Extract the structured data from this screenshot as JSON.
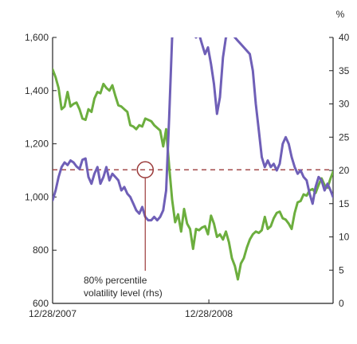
{
  "chart_data": {
    "type": "line",
    "title": "",
    "xlabel": "",
    "ylabel": "",
    "y2_unit_label": "%",
    "x_range": [
      "12/28/2007",
      "10/15/2009"
    ],
    "x_ticks": [
      "12/28/2007",
      "12/28/2008"
    ],
    "y_left": {
      "range": [
        600,
        1600
      ],
      "ticks": [
        "600",
        "800",
        "1,000",
        "1,200",
        "1,400",
        "1,600"
      ]
    },
    "y_right": {
      "range": [
        0,
        40
      ],
      "ticks": [
        "0",
        "5",
        "10",
        "15",
        "20",
        "25",
        "30",
        "35",
        "40"
      ]
    },
    "grid": false,
    "colors": {
      "left_series": "#6cae3e",
      "right_series": "#6f5fb7",
      "reference": "#9b3b3b",
      "axis": "#222222"
    },
    "annotation": {
      "text_lines": [
        "80% percentile",
        "volatility level (rhs)"
      ],
      "value": 20.1,
      "axis": "right",
      "marker_date": "2008-08-01"
    },
    "series": [
      {
        "axis": "left",
        "color": "green",
        "points": [
          [
            "2007-12-28",
            1480
          ],
          [
            "2008-01-04",
            1450
          ],
          [
            "2008-01-11",
            1410
          ],
          [
            "2008-01-18",
            1330
          ],
          [
            "2008-01-25",
            1340
          ],
          [
            "2008-02-01",
            1395
          ],
          [
            "2008-02-08",
            1340
          ],
          [
            "2008-02-15",
            1350
          ],
          [
            "2008-02-22",
            1355
          ],
          [
            "2008-02-29",
            1330
          ],
          [
            "2008-03-07",
            1295
          ],
          [
            "2008-03-14",
            1290
          ],
          [
            "2008-03-21",
            1330
          ],
          [
            "2008-03-28",
            1320
          ],
          [
            "2008-04-04",
            1370
          ],
          [
            "2008-04-11",
            1395
          ],
          [
            "2008-04-18",
            1390
          ],
          [
            "2008-04-25",
            1425
          ],
          [
            "2008-05-02",
            1410
          ],
          [
            "2008-05-09",
            1400
          ],
          [
            "2008-05-16",
            1420
          ],
          [
            "2008-05-23",
            1380
          ],
          [
            "2008-05-30",
            1345
          ],
          [
            "2008-06-06",
            1340
          ],
          [
            "2008-06-13",
            1330
          ],
          [
            "2008-06-20",
            1320
          ],
          [
            "2008-06-27",
            1270
          ],
          [
            "2008-07-04",
            1265
          ],
          [
            "2008-07-11",
            1255
          ],
          [
            "2008-07-18",
            1270
          ],
          [
            "2008-07-25",
            1265
          ],
          [
            "2008-08-01",
            1295
          ],
          [
            "2008-08-08",
            1290
          ],
          [
            "2008-08-15",
            1285
          ],
          [
            "2008-08-22",
            1270
          ],
          [
            "2008-08-29",
            1260
          ],
          [
            "2008-09-05",
            1250
          ],
          [
            "2008-09-12",
            1190
          ],
          [
            "2008-09-19",
            1255
          ],
          [
            "2008-09-26",
            1115
          ],
          [
            "2008-10-03",
            990
          ],
          [
            "2008-10-10",
            905
          ],
          [
            "2008-10-17",
            935
          ],
          [
            "2008-10-24",
            870
          ],
          [
            "2008-10-31",
            955
          ],
          [
            "2008-11-07",
            900
          ],
          [
            "2008-11-14",
            880
          ],
          [
            "2008-11-21",
            805
          ],
          [
            "2008-11-28",
            880
          ],
          [
            "2008-12-05",
            875
          ],
          [
            "2008-12-12",
            885
          ],
          [
            "2008-12-19",
            890
          ],
          [
            "2008-12-26",
            860
          ],
          [
            "2009-01-02",
            930
          ],
          [
            "2009-01-09",
            900
          ],
          [
            "2009-01-16",
            850
          ],
          [
            "2009-01-23",
            860
          ],
          [
            "2009-01-30",
            840
          ],
          [
            "2009-02-06",
            870
          ],
          [
            "2009-02-13",
            830
          ],
          [
            "2009-02-20",
            770
          ],
          [
            "2009-02-27",
            740
          ],
          [
            "2009-03-06",
            690
          ],
          [
            "2009-03-13",
            750
          ],
          [
            "2009-03-20",
            770
          ],
          [
            "2009-03-27",
            810
          ],
          [
            "2009-04-03",
            840
          ],
          [
            "2009-04-10",
            860
          ],
          [
            "2009-04-17",
            870
          ],
          [
            "2009-04-24",
            865
          ],
          [
            "2009-05-01",
            875
          ],
          [
            "2009-05-08",
            925
          ],
          [
            "2009-05-15",
            880
          ],
          [
            "2009-05-22",
            890
          ],
          [
            "2009-05-29",
            920
          ],
          [
            "2009-06-05",
            940
          ],
          [
            "2009-06-12",
            945
          ],
          [
            "2009-06-19",
            920
          ],
          [
            "2009-06-26",
            915
          ],
          [
            "2009-07-03",
            900
          ],
          [
            "2009-07-10",
            880
          ],
          [
            "2009-07-17",
            940
          ],
          [
            "2009-07-24",
            980
          ],
          [
            "2009-07-31",
            985
          ],
          [
            "2009-08-07",
            1010
          ],
          [
            "2009-08-14",
            1005
          ],
          [
            "2009-08-21",
            1025
          ],
          [
            "2009-08-28",
            1030
          ],
          [
            "2009-09-04",
            1015
          ],
          [
            "2009-09-11",
            1045
          ],
          [
            "2009-09-18",
            1070
          ],
          [
            "2009-09-25",
            1045
          ],
          [
            "2009-10-02",
            1035
          ],
          [
            "2009-10-09",
            1070
          ],
          [
            "2009-10-15",
            1095
          ]
        ]
      },
      {
        "axis": "right",
        "color": "purple",
        "points": [
          [
            "2007-12-28",
            15.5
          ],
          [
            "2008-01-04",
            17.0
          ],
          [
            "2008-01-11",
            19.0
          ],
          [
            "2008-01-18",
            20.5
          ],
          [
            "2008-01-25",
            21.2
          ],
          [
            "2008-02-01",
            20.8
          ],
          [
            "2008-02-08",
            21.5
          ],
          [
            "2008-02-15",
            21.2
          ],
          [
            "2008-02-22",
            20.6
          ],
          [
            "2008-02-29",
            20.2
          ],
          [
            "2008-03-07",
            21.6
          ],
          [
            "2008-03-14",
            21.8
          ],
          [
            "2008-03-21",
            19.0
          ],
          [
            "2008-03-28",
            18.0
          ],
          [
            "2008-04-04",
            19.5
          ],
          [
            "2008-04-11",
            20.5
          ],
          [
            "2008-04-18",
            18.0
          ],
          [
            "2008-04-25",
            19.0
          ],
          [
            "2008-05-02",
            20.5
          ],
          [
            "2008-05-09",
            18.5
          ],
          [
            "2008-05-16",
            19.5
          ],
          [
            "2008-05-23",
            19.0
          ],
          [
            "2008-05-30",
            18.5
          ],
          [
            "2008-06-06",
            17.0
          ],
          [
            "2008-06-13",
            17.5
          ],
          [
            "2008-06-20",
            16.5
          ],
          [
            "2008-06-27",
            16.0
          ],
          [
            "2008-07-04",
            15.0
          ],
          [
            "2008-07-11",
            14.0
          ],
          [
            "2008-07-18",
            13.5
          ],
          [
            "2008-07-25",
            14.5
          ],
          [
            "2008-08-01",
            13.0
          ],
          [
            "2008-08-08",
            12.5
          ],
          [
            "2008-08-15",
            12.5
          ],
          [
            "2008-08-22",
            13.0
          ],
          [
            "2008-08-29",
            12.5
          ],
          [
            "2008-09-05",
            13.0
          ],
          [
            "2008-09-12",
            14.0
          ],
          [
            "2008-09-19",
            17.0
          ],
          [
            "2008-09-26",
            28.0
          ],
          [
            "2008-10-03",
            40.0
          ],
          [
            "2008-10-10",
            40.5
          ],
          [
            "2008-10-17",
            40.8
          ],
          [
            "2008-10-24",
            40.8
          ],
          [
            "2008-11-21",
            40.5
          ],
          [
            "2008-11-28",
            40.0
          ],
          [
            "2008-12-05",
            40.5
          ],
          [
            "2008-12-12",
            39.0
          ],
          [
            "2008-12-19",
            37.5
          ],
          [
            "2008-12-26",
            38.5
          ],
          [
            "2009-01-02",
            36.0
          ],
          [
            "2009-01-09",
            33.0
          ],
          [
            "2009-01-16",
            28.5
          ],
          [
            "2009-01-23",
            31.0
          ],
          [
            "2009-01-30",
            37.0
          ],
          [
            "2009-02-06",
            40.0
          ],
          [
            "2009-02-13",
            40.5
          ],
          [
            "2009-02-20",
            40.5
          ],
          [
            "2009-02-27",
            40.0
          ],
          [
            "2009-03-06",
            39.5
          ],
          [
            "2009-03-13",
            39.0
          ],
          [
            "2009-03-20",
            38.5
          ],
          [
            "2009-03-27",
            38.0
          ],
          [
            "2009-04-03",
            37.5
          ],
          [
            "2009-04-10",
            35.0
          ],
          [
            "2009-04-17",
            30.0
          ],
          [
            "2009-04-24",
            26.0
          ],
          [
            "2009-05-01",
            22.0
          ],
          [
            "2009-05-08",
            20.5
          ],
          [
            "2009-05-15",
            21.5
          ],
          [
            "2009-05-22",
            20.5
          ],
          [
            "2009-05-29",
            21.0
          ],
          [
            "2009-06-05",
            20.0
          ],
          [
            "2009-06-12",
            21.0
          ],
          [
            "2009-06-19",
            24.0
          ],
          [
            "2009-06-26",
            25.0
          ],
          [
            "2009-07-03",
            24.0
          ],
          [
            "2009-07-10",
            22.0
          ],
          [
            "2009-07-17",
            20.5
          ],
          [
            "2009-07-24",
            19.5
          ],
          [
            "2009-07-31",
            20.0
          ],
          [
            "2009-08-07",
            19.0
          ],
          [
            "2009-08-14",
            18.5
          ],
          [
            "2009-08-21",
            16.5
          ],
          [
            "2009-08-28",
            15.0
          ],
          [
            "2009-09-04",
            17.5
          ],
          [
            "2009-09-11",
            19.0
          ],
          [
            "2009-09-18",
            18.5
          ],
          [
            "2009-09-25",
            17.0
          ],
          [
            "2009-10-02",
            18.0
          ],
          [
            "2009-10-09",
            17.0
          ],
          [
            "2009-10-15",
            16.0
          ]
        ]
      }
    ]
  }
}
